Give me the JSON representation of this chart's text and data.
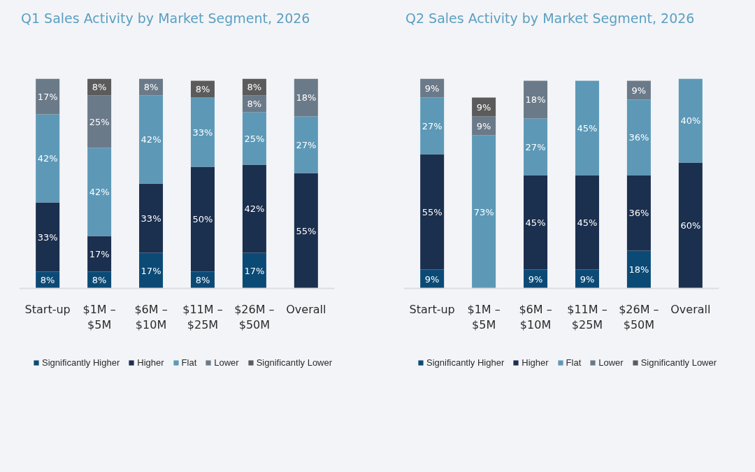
{
  "chart_data": [
    {
      "type": "bar",
      "stacked": true,
      "legend": "bottom",
      "title": "Q1 Sales Activity by Market Segment, 2026",
      "categories": [
        "Start-up",
        "$1M – $5M",
        "$6M – $10M",
        "$11M – $25M",
        "$26M – $50M",
        "Overall"
      ],
      "series": [
        {
          "name": "Significantly Higher",
          "color": "#0c4a76",
          "values": [
            8,
            8,
            17,
            8,
            17,
            null
          ],
          "value_labels": [
            "8%",
            "8%",
            "17%",
            "8%",
            "17%",
            null
          ]
        },
        {
          "name": "Higher",
          "color": "#1b2f4e",
          "values": [
            33,
            17,
            33,
            50,
            42,
            55
          ],
          "value_labels": [
            "33%",
            "17%",
            "33%",
            "50%",
            "42%",
            "55%"
          ]
        },
        {
          "name": "Flat",
          "color": "#5d99b7",
          "values": [
            42,
            42,
            42,
            33,
            25,
            27
          ],
          "value_labels": [
            "42%",
            "42%",
            "42%",
            "33%",
            "25%",
            "27%"
          ]
        },
        {
          "name": "Lower",
          "color": "#6b7a89",
          "values": [
            17,
            25,
            8,
            null,
            8,
            18
          ],
          "value_labels": [
            "17%",
            "25%",
            "8%",
            null,
            "8%",
            "18%"
          ]
        },
        {
          "name": "Significantly Lower",
          "color": "#5b5b5c",
          "values": [
            null,
            8,
            null,
            8,
            8,
            null
          ],
          "value_labels": [
            null,
            "8%",
            null,
            "8%",
            "8%",
            null
          ]
        }
      ]
    },
    {
      "type": "bar",
      "stacked": true,
      "legend": "bottom",
      "title": "Q2 Sales Activity by Market Segment, 2026",
      "categories": [
        "Start-up",
        "$1M – $5M",
        "$6M – $10M",
        "$11M – $25M",
        "$26M – $50M",
        "Overall"
      ],
      "series": [
        {
          "name": "Significantly Higher",
          "color": "#0c4a76",
          "values": [
            9,
            null,
            9,
            9,
            18,
            null
          ],
          "value_labels": [
            "9%",
            null,
            "9%",
            "9%",
            "18%",
            null
          ]
        },
        {
          "name": "Higher",
          "color": "#1b2f4e",
          "values": [
            55,
            null,
            45,
            45,
            36,
            60
          ],
          "value_labels": [
            "55%",
            null,
            "45%",
            "45%",
            "36%",
            "60%"
          ]
        },
        {
          "name": "Flat",
          "color": "#5d99b7",
          "values": [
            27,
            73,
            27,
            45,
            36,
            40
          ],
          "value_labels": [
            "27%",
            "73%",
            "27%",
            "45%",
            "36%",
            "40%"
          ]
        },
        {
          "name": "Lower",
          "color": "#6b7a89",
          "values": [
            9,
            9,
            18,
            null,
            9,
            null
          ],
          "value_labels": [
            "9%",
            "9%",
            "18%",
            null,
            "9%",
            null
          ]
        },
        {
          "name": "Significantly Lower",
          "color": "#5b5b5c",
          "values": [
            null,
            9,
            null,
            null,
            null,
            null
          ],
          "value_labels": [
            null,
            "9%",
            null,
            null,
            null,
            null
          ]
        }
      ]
    }
  ]
}
